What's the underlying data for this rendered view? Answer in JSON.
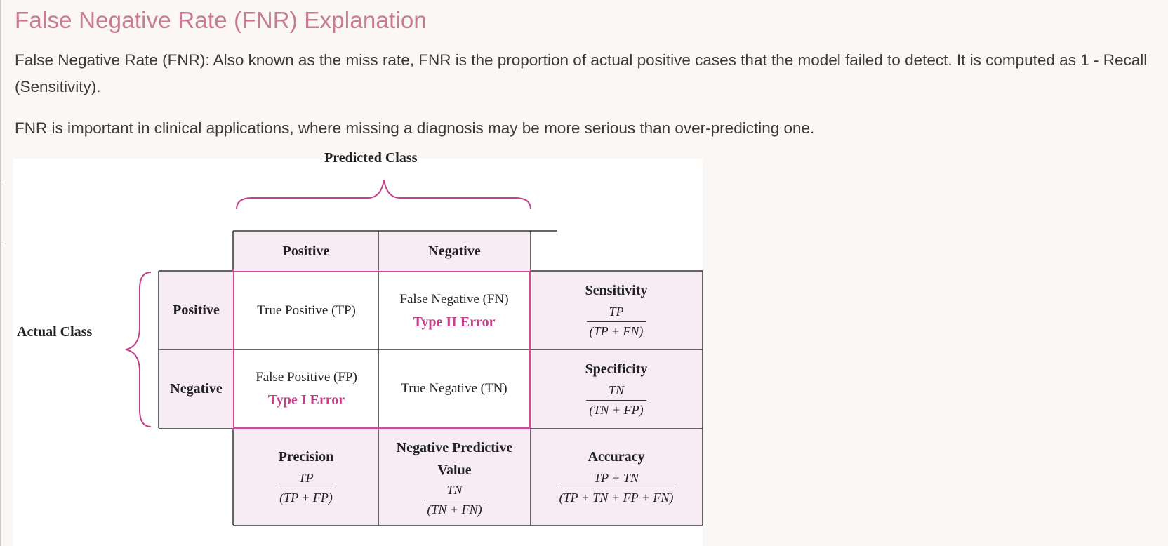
{
  "title": "False Negative Rate (FNR) Explanation",
  "paragraphs": [
    "False Negative Rate (FNR): Also known as the miss rate, FNR is the proportion of actual positive cases that the model failed to detect. It is computed as 1 - Recall (Sensitivity).",
    "FNR is important in clinical applications, where missing a diagnosis may be more serious than over-predicting one."
  ],
  "diagram": {
    "predicted_label": "Predicted Class",
    "actual_label": "Actual Class",
    "col_headers": [
      "Positive",
      "Negative"
    ],
    "row_headers": [
      "Positive",
      "Negative"
    ],
    "cells": {
      "tp": "True Positive (TP)",
      "fn": "False Negative (FN)",
      "fn_error": "Type II Error",
      "fp": "False Positive (FP)",
      "fp_error": "Type I Error",
      "tn": "True Negative (TN)"
    },
    "metrics": {
      "sensitivity": {
        "name": "Sensitivity",
        "num": "TP",
        "den": "(TP + FN)"
      },
      "specificity": {
        "name": "Specificity",
        "num": "TN",
        "den": "(TN + FP)"
      },
      "precision": {
        "name": "Precision",
        "num": "TP",
        "den": "(TP + FP)"
      },
      "npv": {
        "name": "Negative Predictive Value",
        "num": "TN",
        "den": "(TN + FN)"
      },
      "accuracy": {
        "name": "Accuracy",
        "num": "TP + TN",
        "den": "(TP + TN + FP + FN)"
      }
    },
    "colors": {
      "highlight": "#d34a98",
      "tint": "#f7ecf3",
      "error_text": "#c2418a",
      "title": "#c77b96"
    }
  }
}
